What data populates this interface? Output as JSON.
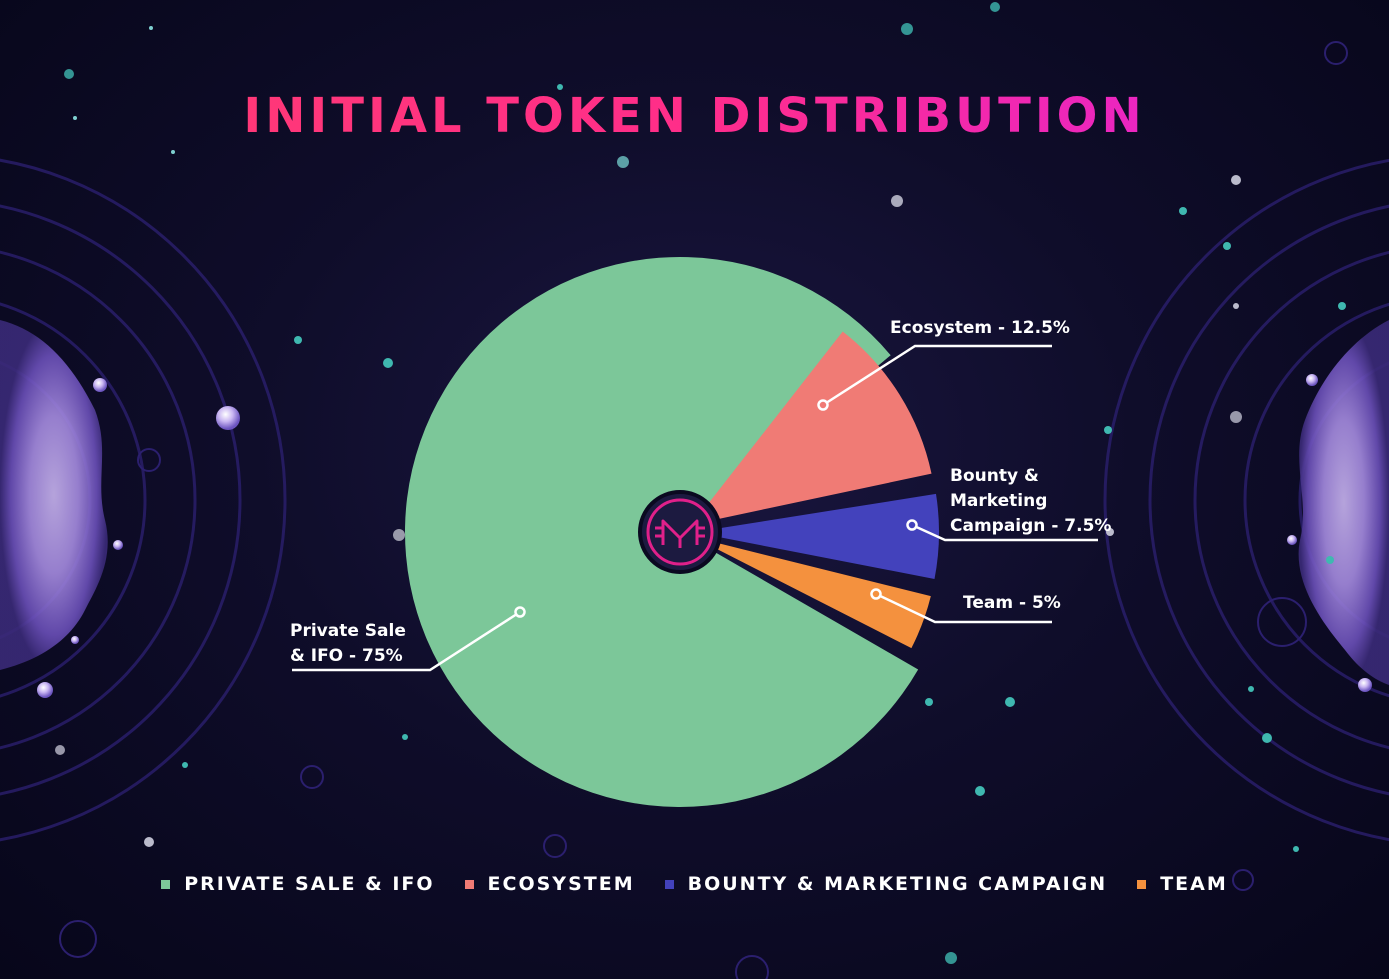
{
  "title": "INITIAL TOKEN DISTRIBUTION",
  "chart_data": {
    "type": "pie",
    "title": "INITIAL TOKEN DISTRIBUTION",
    "categories": [
      "Private Sale & IFO",
      "Ecosystem",
      "Bounty & Marketing Campaign",
      "Team"
    ],
    "values": [
      75,
      12.5,
      7.5,
      5
    ],
    "unit": "%",
    "colors": [
      "#7cc799",
      "#f07b75",
      "#4342bc",
      "#f4913e"
    ],
    "slice_labels": [
      [
        "Private Sale",
        "& IFO - 75%"
      ],
      [
        "Ecosystem - 12.5%"
      ],
      [
        "Bounty &",
        "Marketing",
        "Campaign - 7.5%"
      ],
      [
        "Team - 5%"
      ]
    ],
    "legend_position": "bottom",
    "legend_labels": [
      "PRIVATE SALE & IFO",
      "ECOSYSTEM",
      "BOUNTY & MARKETING CAMPAIGN",
      "TEAM"
    ]
  },
  "center_logo": {
    "icon": "m-logo-icon",
    "ring_color": "#e0208a",
    "fill_color": "#1c1a40"
  }
}
